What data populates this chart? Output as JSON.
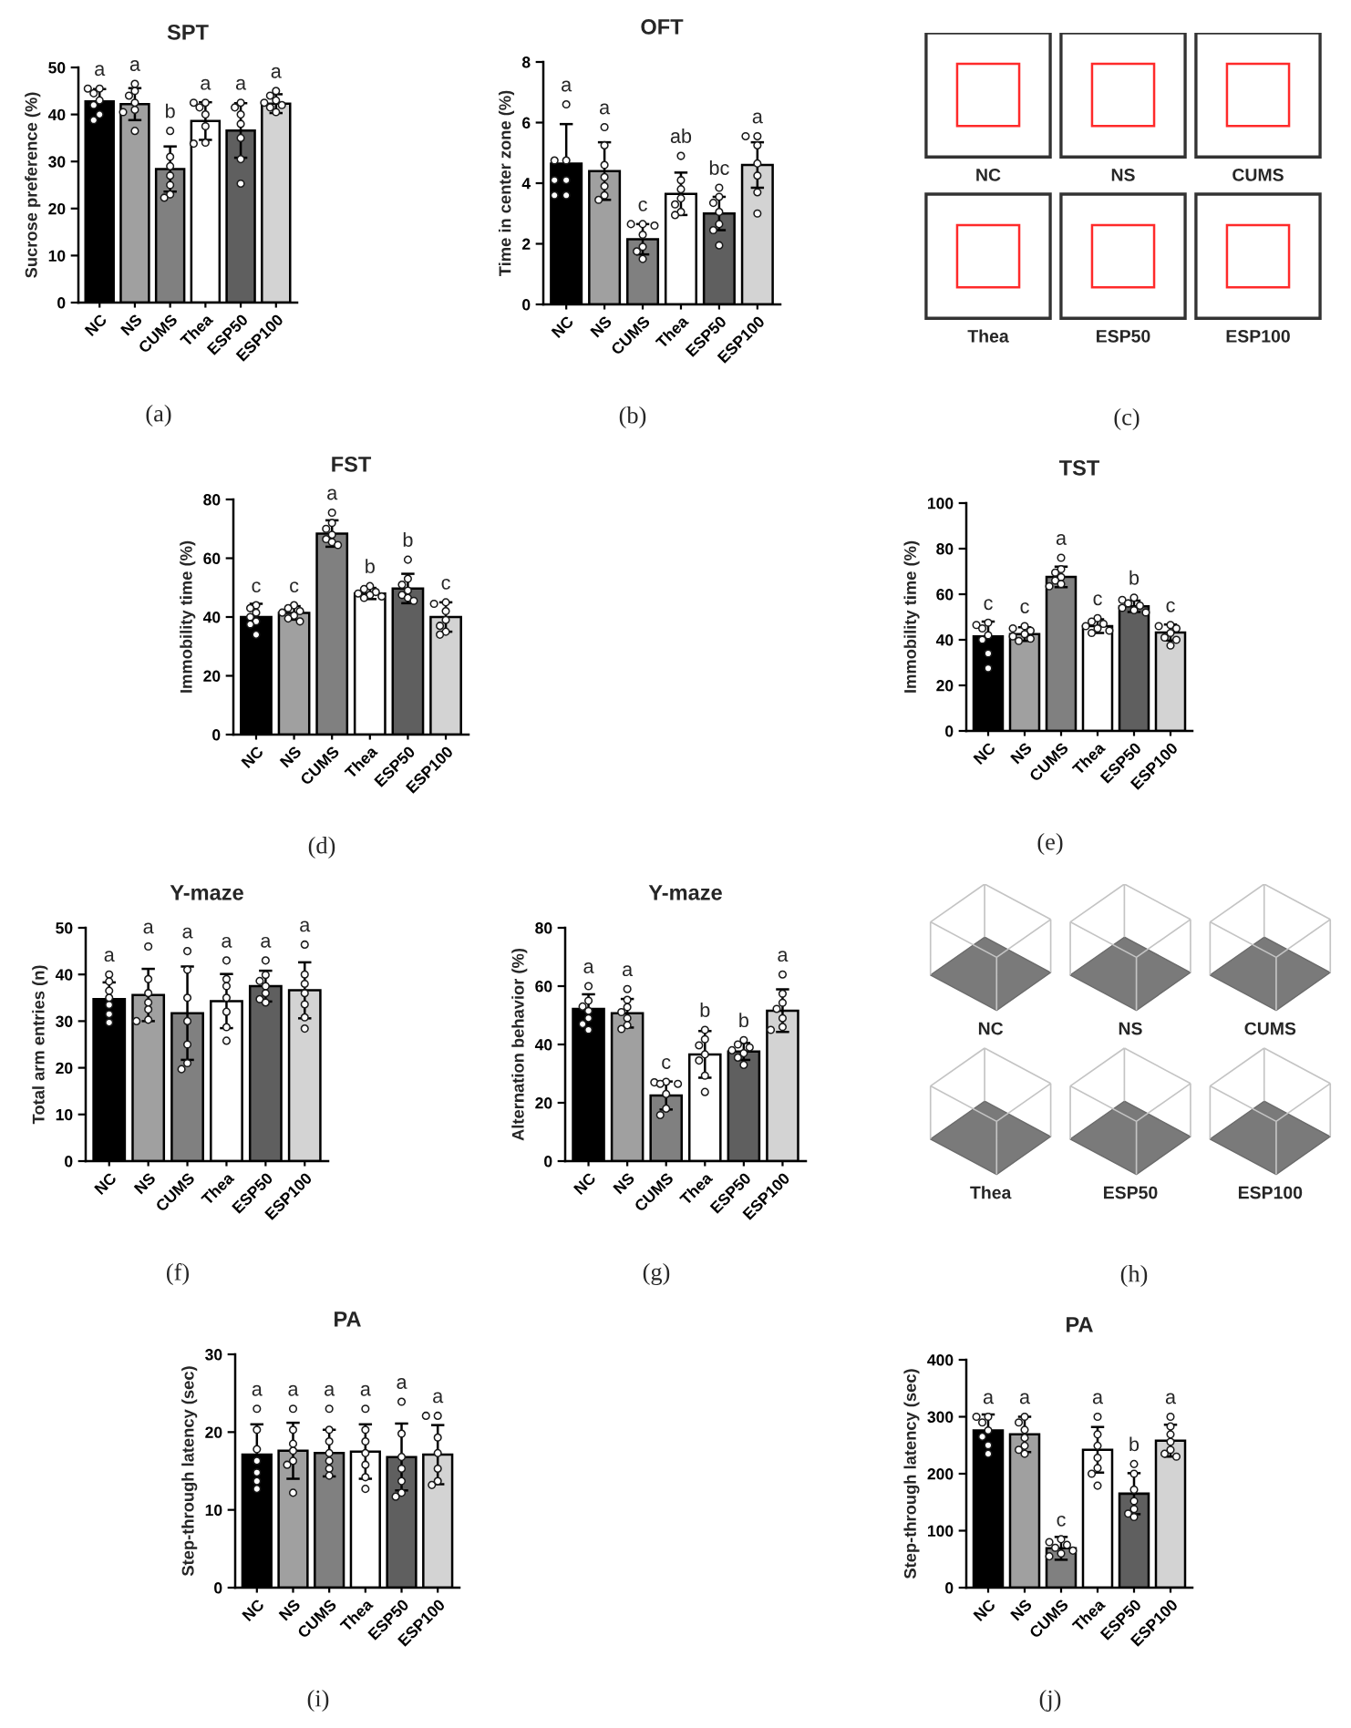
{
  "chart_data": [
    {
      "type": "bar",
      "title": "SPT",
      "ylabel": "Sucrose preference (%)",
      "categories": [
        "NC",
        "NS",
        "CUMS",
        "Thea",
        "ESP50",
        "ESP100"
      ],
      "ylim": [
        0,
        50
      ],
      "yticks": [
        0,
        10,
        20,
        30,
        40,
        50
      ],
      "series": [
        {
          "type": "bar",
          "colors": [
            "#000000",
            "#a0a0a0",
            "#808080",
            "#ffffff",
            "#5f5f5f",
            "#d3d3d3"
          ],
          "values": [
            42.8,
            42.2,
            28.4,
            38.6,
            36.6,
            42.3
          ],
          "errors": [
            2.6,
            3.4,
            4.8,
            4,
            5.8,
            2
          ]
        },
        {
          "type": "scatter",
          "color": "#ffffff",
          "marker": "circle",
          "x": [
            "NC",
            "NC",
            "NC",
            "NC",
            "NC",
            "NC",
            "NC",
            "NS",
            "NS",
            "NS",
            "NS",
            "NS",
            "NS",
            "NS",
            "CUMS",
            "CUMS",
            "CUMS",
            "CUMS",
            "CUMS",
            "CUMS",
            "CUMS",
            "Thea",
            "Thea",
            "Thea",
            "Thea",
            "Thea",
            "Thea",
            "Thea",
            "ESP50",
            "ESP50",
            "ESP50",
            "ESP50",
            "ESP50",
            "ESP50",
            "ESP50",
            "ESP100",
            "ESP100",
            "ESP100",
            "ESP100",
            "ESP100",
            "ESP100",
            "ESP100"
          ],
          "values": [
            45.5,
            45.5,
            44.5,
            43,
            42,
            40,
            38.8,
            46.5,
            45,
            44,
            42.5,
            41,
            40.5,
            36.5,
            36.5,
            31,
            29,
            27,
            25,
            23,
            22.3,
            42.5,
            42.5,
            41.5,
            40,
            37.5,
            34,
            33.8,
            42.5,
            41.5,
            40,
            38,
            35,
            30.5,
            25.3,
            45,
            44,
            43,
            42.5,
            42,
            41.5,
            40.5
          ]
        }
      ],
      "annotations": [
        {
          "text": "a",
          "x": "NC",
          "y": 45.5
        },
        {
          "text": "a",
          "x": "NS",
          "y": 46.5
        },
        {
          "text": "b",
          "x": "CUMS",
          "y": 36.5
        },
        {
          "text": "a",
          "x": "Thea",
          "y": 42.5
        },
        {
          "text": "a",
          "x": "ESP50",
          "y": 42.5
        },
        {
          "text": "a",
          "x": "ESP100",
          "y": 45
        },
        "(a)"
      ]
    },
    {
      "type": "bar",
      "title": "OFT",
      "ylabel": "Time in center zone (%)",
      "categories": [
        "NC",
        "NS",
        "CUMS",
        "Thea",
        "ESP50",
        "ESP100"
      ],
      "ylim": [
        0,
        8
      ],
      "yticks": [
        0,
        2,
        4,
        6,
        8
      ],
      "series": [
        {
          "type": "bar",
          "colors": [
            "#000000",
            "#a0a0a0",
            "#808080",
            "#ffffff",
            "#5f5f5f",
            "#d3d3d3"
          ],
          "values": [
            4.65,
            4.4,
            2.15,
            3.65,
            3.0,
            4.6
          ],
          "errors": [
            1.3,
            0.95,
            0.5,
            0.7,
            0.55,
            0.75
          ]
        },
        {
          "type": "scatter",
          "color": "#ffffff",
          "marker": "circle",
          "x": [
            "NC",
            "NC",
            "NC",
            "NC",
            "NC",
            "NC",
            "NC",
            "NS",
            "NS",
            "NS",
            "NS",
            "NS",
            "NS",
            "NS",
            "CUMS",
            "CUMS",
            "CUMS",
            "CUMS",
            "CUMS",
            "CUMS",
            "CUMS",
            "Thea",
            "Thea",
            "Thea",
            "Thea",
            "Thea",
            "Thea",
            "Thea",
            "ESP50",
            "ESP50",
            "ESP50",
            "ESP50",
            "ESP50",
            "ESP50",
            "ESP50",
            "ESP100",
            "ESP100",
            "ESP100",
            "ESP100",
            "ESP100",
            "ESP100",
            "ESP100"
          ],
          "values": [
            6.6,
            4.75,
            4.75,
            4.1,
            4.1,
            3.6,
            3.6,
            5.85,
            5.25,
            4.6,
            4.2,
            3.9,
            3.6,
            3.45,
            2.65,
            2.65,
            2.6,
            2.3,
            1.9,
            1.75,
            1.5,
            4.9,
            4.1,
            3.8,
            3.5,
            3.3,
            3.05,
            2.95,
            3.85,
            3.55,
            3.35,
            3.05,
            2.65,
            2.45,
            1.95,
            5.55,
            5.55,
            5.25,
            4.65,
            4.25,
            3.7,
            3.0
          ]
        }
      ],
      "annotations": [
        {
          "text": "a",
          "x": "NC",
          "y": 6.6
        },
        {
          "text": "a",
          "x": "NS",
          "y": 5.85
        },
        {
          "text": "c",
          "x": "CUMS",
          "y": 2.65
        },
        {
          "text": "ab",
          "x": "Thea",
          "y": 4.9
        },
        {
          "text": "bc",
          "x": "ESP50",
          "y": 3.85
        },
        {
          "text": "a",
          "x": "ESP100",
          "y": 5.55
        },
        "(b)"
      ]
    },
    {
      "type": "other",
      "categories": [
        "NC",
        "NS",
        "CUMS",
        "Thea",
        "ESP50",
        "ESP100"
      ],
      "annotations": [
        "(c)"
      ]
    },
    {
      "type": "bar",
      "title": "FST",
      "ylabel": "Immobility time (%)",
      "categories": [
        "NC",
        "NS",
        "CUMS",
        "Thea",
        "ESP50",
        "ESP100"
      ],
      "ylim": [
        0,
        80
      ],
      "yticks": [
        0,
        20,
        40,
        60,
        80
      ],
      "series": [
        {
          "type": "bar",
          "colors": [
            "#000000",
            "#a0a0a0",
            "#808080",
            "#ffffff",
            "#5f5f5f",
            "#d3d3d3"
          ],
          "values": [
            40,
            41.4,
            68.4,
            48,
            49.7,
            40
          ],
          "errors": [
            4.5,
            2.3,
            4.5,
            1.9,
            5,
            5
          ]
        },
        {
          "type": "scatter",
          "color": "#ffffff",
          "marker": "circle",
          "x": [
            "NC",
            "NC",
            "NC",
            "NC",
            "NC",
            "NC",
            "NC",
            "NS",
            "NS",
            "NS",
            "NS",
            "NS",
            "NS",
            "NS",
            "CUMS",
            "CUMS",
            "CUMS",
            "CUMS",
            "CUMS",
            "CUMS",
            "CUMS",
            "Thea",
            "Thea",
            "Thea",
            "Thea",
            "Thea",
            "Thea",
            "Thea",
            "ESP50",
            "ESP50",
            "ESP50",
            "ESP50",
            "ESP50",
            "ESP50",
            "ESP50",
            "ESP100",
            "ESP100",
            "ESP100",
            "ESP100",
            "ESP100",
            "ESP100",
            "ESP100"
          ],
          "values": [
            44,
            43,
            41.5,
            40,
            38.5,
            37.5,
            34,
            44,
            43,
            42,
            41.5,
            40.5,
            39.5,
            38.5,
            75.5,
            72,
            70,
            68,
            66.5,
            65.5,
            64.5,
            50.5,
            49.5,
            48.5,
            48,
            47.5,
            47,
            46.5,
            59.5,
            53,
            51,
            49,
            47.5,
            46.5,
            45.5,
            45,
            44.5,
            42,
            39,
            37,
            35,
            34
          ]
        }
      ],
      "annotations": [
        {
          "text": "c",
          "x": "NC",
          "y": 44
        },
        {
          "text": "c",
          "x": "NS",
          "y": 44
        },
        {
          "text": "a",
          "x": "CUMS",
          "y": 75.5
        },
        {
          "text": "b",
          "x": "Thea",
          "y": 50.5
        },
        {
          "text": "b",
          "x": "ESP50",
          "y": 59.5
        },
        {
          "text": "c",
          "x": "ESP100",
          "y": 45
        },
        "(d)"
      ]
    },
    {
      "type": "bar",
      "title": "TST",
      "ylabel": "Immobility time (%)",
      "categories": [
        "NC",
        "NS",
        "CUMS",
        "Thea",
        "ESP50",
        "ESP100"
      ],
      "ylim": [
        0,
        100
      ],
      "yticks": [
        0,
        20,
        40,
        60,
        80,
        100
      ],
      "series": [
        {
          "type": "bar",
          "colors": [
            "#000000",
            "#a0a0a0",
            "#808080",
            "#ffffff",
            "#5f5f5f",
            "#d3d3d3"
          ],
          "values": [
            41.5,
            42.5,
            67.6,
            46,
            54.7,
            43.2
          ],
          "errors": [
            6.5,
            3,
            4.5,
            3,
            2.5,
            3.5
          ]
        },
        {
          "type": "scatter",
          "color": "#ffffff",
          "marker": "circle",
          "x": [
            "NC",
            "NC",
            "NC",
            "NC",
            "NC",
            "NC",
            "NC",
            "NS",
            "NS",
            "NS",
            "NS",
            "NS",
            "NS",
            "NS",
            "CUMS",
            "CUMS",
            "CUMS",
            "CUMS",
            "CUMS",
            "CUMS",
            "CUMS",
            "Thea",
            "Thea",
            "Thea",
            "Thea",
            "Thea",
            "Thea",
            "Thea",
            "ESP50",
            "ESP50",
            "ESP50",
            "ESP50",
            "ESP50",
            "ESP50",
            "ESP50",
            "ESP100",
            "ESP100",
            "ESP100",
            "ESP100",
            "ESP100",
            "ESP100",
            "ESP100"
          ],
          "values": [
            47.5,
            46.5,
            45,
            42,
            40,
            34,
            27.5,
            46,
            45,
            44,
            42.5,
            41.5,
            40.5,
            39.5,
            76,
            71,
            69.5,
            67.5,
            66,
            64.5,
            63.5,
            49.5,
            48,
            47,
            46,
            45,
            44,
            43,
            58.5,
            57.5,
            56,
            55,
            54,
            53,
            52,
            46.5,
            46,
            45,
            43,
            41,
            40,
            37.5
          ]
        }
      ],
      "annotations": [
        {
          "text": "c",
          "x": "NC",
          "y": 47.5
        },
        {
          "text": "c",
          "x": "NS",
          "y": 46
        },
        {
          "text": "a",
          "x": "CUMS",
          "y": 76
        },
        {
          "text": "c",
          "x": "Thea",
          "y": 49.5
        },
        {
          "text": "b",
          "x": "ESP50",
          "y": 58.5
        },
        {
          "text": "c",
          "x": "ESP100",
          "y": 46.5
        },
        "(e)"
      ]
    },
    {
      "type": "bar",
      "title": "Y-maze",
      "ylabel": "Total arm entries (n)",
      "categories": [
        "NC",
        "NS",
        "CUMS",
        "Thea",
        "ESP50",
        "ESP100"
      ],
      "ylim": [
        0,
        50
      ],
      "yticks": [
        0,
        10,
        20,
        30,
        40,
        50
      ],
      "series": [
        {
          "type": "bar",
          "colors": [
            "#000000",
            "#a0a0a0",
            "#808080",
            "#ffffff",
            "#5f5f5f",
            "#d3d3d3"
          ],
          "values": [
            34.7,
            35.6,
            31.7,
            34.3,
            37.5,
            36.6
          ],
          "errors": [
            3.6,
            5.6,
            10,
            5.8,
            3.3,
            6
          ]
        },
        {
          "type": "scatter",
          "color": "#ffffff",
          "marker": "circle",
          "x": [
            "NC",
            "NC",
            "NC",
            "NC",
            "NC",
            "NC",
            "NC",
            "NS",
            "NS",
            "NS",
            "NS",
            "NS",
            "NS",
            "NS",
            "CUMS",
            "CUMS",
            "CUMS",
            "CUMS",
            "CUMS",
            "CUMS",
            "CUMS",
            "Thea",
            "Thea",
            "Thea",
            "Thea",
            "Thea",
            "Thea",
            "Thea",
            "ESP50",
            "ESP50",
            "ESP50",
            "ESP50",
            "ESP50",
            "ESP50",
            "ESP50",
            "ESP100",
            "ESP100",
            "ESP100",
            "ESP100",
            "ESP100",
            "ESP100",
            "ESP100"
          ],
          "values": [
            40,
            38.5,
            36.5,
            35,
            33.5,
            31.5,
            29.7,
            46,
            39,
            36,
            34,
            32.5,
            30.3,
            30,
            45,
            41,
            35,
            30,
            25,
            21,
            19.7,
            43,
            39,
            37.5,
            35,
            32,
            28.7,
            25.8,
            43,
            39.9,
            38.6,
            37.5,
            36,
            34.7,
            34,
            46.4,
            40,
            38,
            36,
            33.6,
            30.8,
            28.4
          ]
        }
      ],
      "annotations": [
        {
          "text": "a",
          "x": "NC",
          "y": 40
        },
        {
          "text": "a",
          "x": "NS",
          "y": 46
        },
        {
          "text": "a",
          "x": "CUMS",
          "y": 45
        },
        {
          "text": "a",
          "x": "Thea",
          "y": 43
        },
        {
          "text": "a",
          "x": "ESP50",
          "y": 43
        },
        {
          "text": "a",
          "x": "ESP100",
          "y": 46.4
        },
        "(f)"
      ]
    },
    {
      "type": "bar",
      "title": "Y-maze",
      "ylabel": "Alternation behavior (%)",
      "categories": [
        "NC",
        "NS",
        "CUMS",
        "Thea",
        "ESP50",
        "ESP100"
      ],
      "ylim": [
        0,
        80
      ],
      "yticks": [
        0,
        20,
        40,
        60,
        80
      ],
      "series": [
        {
          "type": "bar",
          "colors": [
            "#000000",
            "#a0a0a0",
            "#808080",
            "#ffffff",
            "#5f5f5f",
            "#d3d3d3"
          ],
          "values": [
            52.2,
            50.7,
            22.5,
            36.6,
            37.6,
            51.6
          ],
          "errors": [
            5,
            4.9,
            4.8,
            8,
            2.9,
            7.3
          ]
        },
        {
          "type": "scatter",
          "color": "#ffffff",
          "marker": "circle",
          "x": [
            "NC",
            "NC",
            "NC",
            "NC",
            "NC",
            "NC",
            "NC",
            "NS",
            "NS",
            "NS",
            "NS",
            "NS",
            "NS",
            "NS",
            "CUMS",
            "CUMS",
            "CUMS",
            "CUMS",
            "CUMS",
            "CUMS",
            "CUMS",
            "Thea",
            "Thea",
            "Thea",
            "Thea",
            "Thea",
            "Thea",
            "Thea",
            "ESP50",
            "ESP50",
            "ESP50",
            "ESP50",
            "ESP50",
            "ESP50",
            "ESP50",
            "ESP100",
            "ESP100",
            "ESP100",
            "ESP100",
            "ESP100",
            "ESP100",
            "ESP100"
          ],
          "values": [
            60,
            55,
            53,
            51.5,
            49,
            47,
            45,
            59,
            55.3,
            52.8,
            51.1,
            49,
            46.6,
            45.3,
            27.2,
            27,
            26.5,
            26.5,
            23,
            18,
            15.8,
            45,
            41.8,
            39.7,
            36.6,
            34.5,
            29.3,
            23.7,
            41.5,
            40,
            39,
            38,
            37,
            35.5,
            33,
            64,
            57.4,
            54.3,
            52.2,
            49,
            46,
            45
          ]
        }
      ],
      "annotations": [
        {
          "text": "a",
          "x": "NC",
          "y": 60
        },
        {
          "text": "a",
          "x": "NS",
          "y": 59
        },
        {
          "text": "c",
          "x": "CUMS",
          "y": 27.2
        },
        {
          "text": "b",
          "x": "Thea",
          "y": 45
        },
        {
          "text": "b",
          "x": "ESP50",
          "y": 41.5
        },
        {
          "text": "a",
          "x": "ESP100",
          "y": 64
        },
        "(g)"
      ]
    },
    {
      "type": "other",
      "categories": [
        "NC",
        "NS",
        "CUMS",
        "Thea",
        "ESP50",
        "ESP100"
      ],
      "annotations": [
        "(h)"
      ]
    },
    {
      "type": "bar",
      "title": "PA",
      "ylabel": "Step-through latency (sec)",
      "categories": [
        "NC",
        "NS",
        "CUMS",
        "Thea",
        "ESP50",
        "ESP100"
      ],
      "ylim": [
        0,
        30
      ],
      "yticks": [
        0,
        10,
        20,
        30
      ],
      "series": [
        {
          "type": "bar",
          "colors": [
            "#000000",
            "#a0a0a0",
            "#808080",
            "#ffffff",
            "#5f5f5f",
            "#d3d3d3"
          ],
          "values": [
            17.1,
            17.6,
            17.3,
            17.5,
            16.8,
            17.1
          ],
          "errors": [
            3.9,
            3.6,
            3,
            3.5,
            4.3,
            3.8
          ]
        },
        {
          "type": "scatter",
          "color": "#ffffff",
          "marker": "circle",
          "x": [
            "NC",
            "NC",
            "NC",
            "NC",
            "NC",
            "NC",
            "NC",
            "NS",
            "NS",
            "NS",
            "NS",
            "NS",
            "NS",
            "NS",
            "CUMS",
            "CUMS",
            "CUMS",
            "CUMS",
            "CUMS",
            "CUMS",
            "CUMS",
            "Thea",
            "Thea",
            "Thea",
            "Thea",
            "Thea",
            "Thea",
            "Thea",
            "ESP50",
            "ESP50",
            "ESP50",
            "ESP50",
            "ESP50",
            "ESP50",
            "ESP50",
            "ESP100",
            "ESP100",
            "ESP100",
            "ESP100",
            "ESP100",
            "ESP100",
            "ESP100"
          ],
          "values": [
            23,
            20.3,
            17.8,
            16.3,
            14.8,
            13.7,
            12.7,
            23,
            20.3,
            18.5,
            17.6,
            16.3,
            15.8,
            12.2,
            23,
            20.3,
            18.8,
            17.3,
            16.3,
            15.3,
            14.4,
            23,
            20.3,
            18.8,
            17.3,
            15.8,
            14.2,
            12.7,
            23.9,
            19.8,
            16.8,
            15.3,
            13.7,
            12.2,
            11.7,
            22.1,
            22.1,
            19.3,
            17.3,
            15.3,
            13.7,
            13.2
          ]
        }
      ],
      "annotations": [
        {
          "text": "a",
          "x": "NC",
          "y": 23
        },
        {
          "text": "a",
          "x": "NS",
          "y": 23
        },
        {
          "text": "a",
          "x": "CUMS",
          "y": 23
        },
        {
          "text": "a",
          "x": "Thea",
          "y": 23
        },
        {
          "text": "a",
          "x": "ESP50",
          "y": 23.9
        },
        {
          "text": "a",
          "x": "ESP100",
          "y": 22.1
        },
        "(i)"
      ]
    },
    {
      "type": "bar",
      "title": "PA",
      "ylabel": "Step-through latency (sec)",
      "categories": [
        "NC",
        "NS",
        "CUMS",
        "Thea",
        "ESP50",
        "ESP100"
      ],
      "ylim": [
        0,
        400
      ],
      "yticks": [
        0,
        100,
        200,
        300,
        400
      ],
      "series": [
        {
          "type": "bar",
          "colors": [
            "#000000",
            "#a0a0a0",
            "#808080",
            "#ffffff",
            "#5f5f5f",
            "#d3d3d3"
          ],
          "values": [
            276,
            269,
            69,
            242,
            165,
            258
          ],
          "errors": [
            28,
            31,
            20,
            40,
            36,
            28
          ]
        },
        {
          "type": "scatter",
          "color": "#ffffff",
          "marker": "circle",
          "x": [
            "NC",
            "NC",
            "NC",
            "NC",
            "NC",
            "NC",
            "NC",
            "NS",
            "NS",
            "NS",
            "NS",
            "NS",
            "NS",
            "NS",
            "CUMS",
            "CUMS",
            "CUMS",
            "CUMS",
            "CUMS",
            "CUMS",
            "CUMS",
            "Thea",
            "Thea",
            "Thea",
            "Thea",
            "Thea",
            "Thea",
            "Thea",
            "ESP50",
            "ESP50",
            "ESP50",
            "ESP50",
            "ESP50",
            "ESP50",
            "ESP50",
            "ESP100",
            "ESP100",
            "ESP100",
            "ESP100",
            "ESP100",
            "ESP100",
            "ESP100"
          ],
          "values": [
            300,
            300,
            290,
            276,
            265,
            250,
            235,
            300,
            290,
            277,
            263,
            249,
            242,
            235,
            85,
            80,
            75,
            70,
            65,
            60,
            55,
            300,
            269,
            249,
            228,
            210,
            200,
            179,
            217,
            200,
            172,
            152,
            138,
            130,
            124,
            300,
            283,
            269,
            256,
            242,
            235,
            230
          ]
        }
      ],
      "annotations": [
        {
          "text": "a",
          "x": "NC",
          "y": 300
        },
        {
          "text": "a",
          "x": "NS",
          "y": 300
        },
        {
          "text": "c",
          "x": "CUMS",
          "y": 85
        },
        {
          "text": "a",
          "x": "Thea",
          "y": 300
        },
        {
          "text": "b",
          "x": "ESP50",
          "y": 217
        },
        {
          "text": "a",
          "x": "ESP100",
          "y": 300
        },
        "(j)"
      ]
    }
  ]
}
